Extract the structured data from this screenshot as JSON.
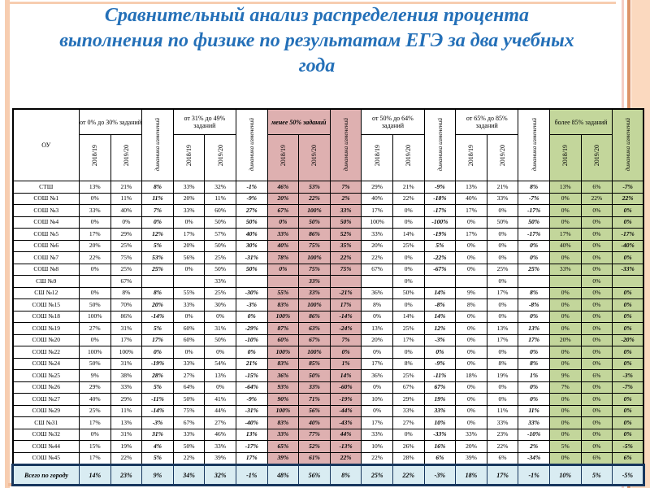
{
  "title": {
    "line1": "Сравнительный анализ распределения процента",
    "line2": "выполнения по физике по результатам ЕГЭ за два учебных",
    "line3": "года"
  },
  "colors": {
    "title_blue": "#2470b8",
    "pink_band": "#deb0b0",
    "green_band": "#c3d69b",
    "total_row_bg": "#d9ecf2",
    "total_row_border": "#17365d",
    "frame_peach": "#f7cdb0",
    "frame_orange": "#dd9368"
  },
  "table": {
    "corner_label": "ОУ",
    "dynamics_label": "динамика изменений",
    "year_labels": [
      "2018/19",
      "2019/20"
    ],
    "groups": [
      {
        "label": "от 0% до 30% заданий",
        "tone": "white"
      },
      {
        "label": "от 31% до 49% заданий",
        "tone": "white"
      },
      {
        "label": "менее 50% заданий",
        "tone": "pink"
      },
      {
        "label": "от 50% до 64% заданий",
        "tone": "white"
      },
      {
        "label": "от 65% до 85% заданий",
        "tone": "white"
      },
      {
        "label": "более 85% заданий",
        "tone": "green"
      }
    ],
    "rows": [
      {
        "name": "СТШ",
        "values": [
          "13%",
          "21%",
          "8%",
          "33%",
          "32%",
          "-1%",
          "46%",
          "53%",
          "7%",
          "29%",
          "21%",
          "-9%",
          "13%",
          "21%",
          "8%",
          "13%",
          "6%",
          "-7%"
        ]
      },
      {
        "name": "СОШ №1",
        "values": [
          "0%",
          "11%",
          "11%",
          "20%",
          "11%",
          "-9%",
          "20%",
          "22%",
          "2%",
          "40%",
          "22%",
          "-18%",
          "40%",
          "33%",
          "-7%",
          "0%",
          "22%",
          "22%"
        ]
      },
      {
        "name": "СОШ №3",
        "values": [
          "33%",
          "40%",
          "7%",
          "33%",
          "60%",
          "27%",
          "67%",
          "100%",
          "33%",
          "17%",
          "0%",
          "-17%",
          "17%",
          "0%",
          "-17%",
          "0%",
          "0%",
          "0%"
        ]
      },
      {
        "name": "СОШ №4",
        "values": [
          "0%",
          "0%",
          "0%",
          "0%",
          "50%",
          "50%",
          "0%",
          "50%",
          "50%",
          "100%",
          "0%",
          "-100%",
          "0%",
          "50%",
          "50%",
          "0%",
          "0%",
          "0%"
        ]
      },
      {
        "name": "СОШ №5",
        "values": [
          "17%",
          "29%",
          "12%",
          "17%",
          "57%",
          "40%",
          "33%",
          "86%",
          "52%",
          "33%",
          "14%",
          "-19%",
          "17%",
          "0%",
          "-17%",
          "17%",
          "0%",
          "-17%"
        ]
      },
      {
        "name": "СОШ №6",
        "values": [
          "20%",
          "25%",
          "5%",
          "20%",
          "50%",
          "30%",
          "40%",
          "75%",
          "35%",
          "20%",
          "25%",
          "5%",
          "0%",
          "0%",
          "0%",
          "40%",
          "0%",
          "-40%"
        ]
      },
      {
        "name": "СОШ №7",
        "values": [
          "22%",
          "75%",
          "53%",
          "56%",
          "25%",
          "-31%",
          "78%",
          "100%",
          "22%",
          "22%",
          "0%",
          "-22%",
          "0%",
          "0%",
          "0%",
          "0%",
          "0%",
          "0%"
        ]
      },
      {
        "name": "СОШ №8",
        "values": [
          "0%",
          "25%",
          "25%",
          "0%",
          "50%",
          "50%",
          "0%",
          "75%",
          "75%",
          "67%",
          "0%",
          "-67%",
          "0%",
          "25%",
          "25%",
          "33%",
          "0%",
          "-33%"
        ]
      },
      {
        "name": "СШ №9",
        "values": [
          "",
          "67%",
          "",
          "",
          "33%",
          "",
          "",
          "33%",
          "",
          "",
          "0%",
          "",
          "",
          "0%",
          "",
          "",
          "0%",
          ""
        ]
      },
      {
        "name": "СШ №12",
        "values": [
          "0%",
          "8%",
          "8%",
          "55%",
          "25%",
          "-30%",
          "55%",
          "33%",
          "-21%",
          "36%",
          "50%",
          "14%",
          "9%",
          "17%",
          "8%",
          "0%",
          "0%",
          "0%"
        ]
      },
      {
        "name": "СОШ №15",
        "values": [
          "50%",
          "70%",
          "20%",
          "33%",
          "30%",
          "-3%",
          "83%",
          "100%",
          "17%",
          "8%",
          "0%",
          "-8%",
          "8%",
          "0%",
          "-8%",
          "0%",
          "0%",
          "0%"
        ]
      },
      {
        "name": "СОШ №18",
        "values": [
          "100%",
          "86%",
          "-14%",
          "0%",
          "0%",
          "0%",
          "100%",
          "86%",
          "-14%",
          "0%",
          "14%",
          "14%",
          "0%",
          "0%",
          "0%",
          "0%",
          "0%",
          "0%"
        ]
      },
      {
        "name": "СОШ №19",
        "values": [
          "27%",
          "31%",
          "5%",
          "60%",
          "31%",
          "-29%",
          "87%",
          "63%",
          "-24%",
          "13%",
          "25%",
          "12%",
          "0%",
          "13%",
          "13%",
          "0%",
          "0%",
          "0%"
        ]
      },
      {
        "name": "СОШ №20",
        "values": [
          "0%",
          "17%",
          "17%",
          "60%",
          "50%",
          "-10%",
          "60%",
          "67%",
          "7%",
          "20%",
          "17%",
          "-3%",
          "0%",
          "17%",
          "17%",
          "20%",
          "0%",
          "-20%"
        ]
      },
      {
        "name": "СОШ №22",
        "values": [
          "100%",
          "100%",
          "0%",
          "0%",
          "0%",
          "0%",
          "100%",
          "100%",
          "0%",
          "0%",
          "0%",
          "0%",
          "0%",
          "0%",
          "0%",
          "0%",
          "0%",
          "0%"
        ]
      },
      {
        "name": "СОШ №24",
        "values": [
          "50%",
          "31%",
          "-19%",
          "33%",
          "54%",
          "21%",
          "83%",
          "85%",
          "1%",
          "17%",
          "8%",
          "-9%",
          "0%",
          "8%",
          "8%",
          "0%",
          "0%",
          "0%"
        ]
      },
      {
        "name": "СОШ №25",
        "values": [
          "9%",
          "38%",
          "28%",
          "27%",
          "13%",
          "-15%",
          "36%",
          "50%",
          "14%",
          "36%",
          "25%",
          "-11%",
          "18%",
          "19%",
          "1%",
          "9%",
          "6%",
          "-3%"
        ]
      },
      {
        "name": "СОШ №26",
        "values": [
          "29%",
          "33%",
          "5%",
          "64%",
          "0%",
          "-64%",
          "93%",
          "33%",
          "-60%",
          "0%",
          "67%",
          "67%",
          "0%",
          "0%",
          "0%",
          "7%",
          "0%",
          "-7%"
        ]
      },
      {
        "name": "СОШ №27",
        "values": [
          "40%",
          "29%",
          "-11%",
          "50%",
          "41%",
          "-9%",
          "90%",
          "71%",
          "-19%",
          "10%",
          "29%",
          "19%",
          "0%",
          "0%",
          "0%",
          "0%",
          "0%",
          "0%"
        ]
      },
      {
        "name": "СОШ №29",
        "values": [
          "25%",
          "11%",
          "-14%",
          "75%",
          "44%",
          "-31%",
          "100%",
          "56%",
          "-44%",
          "0%",
          "33%",
          "33%",
          "0%",
          "11%",
          "11%",
          "0%",
          "0%",
          "0%"
        ]
      },
      {
        "name": "СШ №31",
        "values": [
          "17%",
          "13%",
          "-3%",
          "67%",
          "27%",
          "-40%",
          "83%",
          "40%",
          "-43%",
          "17%",
          "27%",
          "10%",
          "0%",
          "33%",
          "33%",
          "0%",
          "0%",
          "0%"
        ]
      },
      {
        "name": "СОШ №32",
        "values": [
          "0%",
          "31%",
          "31%",
          "33%",
          "46%",
          "13%",
          "33%",
          "77%",
          "44%",
          "33%",
          "0%",
          "-33%",
          "33%",
          "23%",
          "-10%",
          "0%",
          "0%",
          "0%"
        ]
      },
      {
        "name": "СОШ №44",
        "values": [
          "15%",
          "19%",
          "4%",
          "50%",
          "33%",
          "-17%",
          "65%",
          "52%",
          "-13%",
          "10%",
          "26%",
          "16%",
          "20%",
          "22%",
          "2%",
          "5%",
          "0%",
          "-5%"
        ]
      },
      {
        "name": "СОШ №45",
        "values": [
          "17%",
          "22%",
          "5%",
          "22%",
          "39%",
          "17%",
          "39%",
          "61%",
          "22%",
          "22%",
          "28%",
          "6%",
          "39%",
          "6%",
          "-34%",
          "0%",
          "6%",
          "6%"
        ]
      }
    ],
    "total_row": {
      "name": "Всего по городу",
      "values": [
        "14%",
        "23%",
        "9%",
        "34%",
        "32%",
        "-1%",
        "48%",
        "56%",
        "8%",
        "25%",
        "22%",
        "-3%",
        "18%",
        "17%",
        "-1%",
        "10%",
        "5%",
        "-5%"
      ]
    }
  }
}
